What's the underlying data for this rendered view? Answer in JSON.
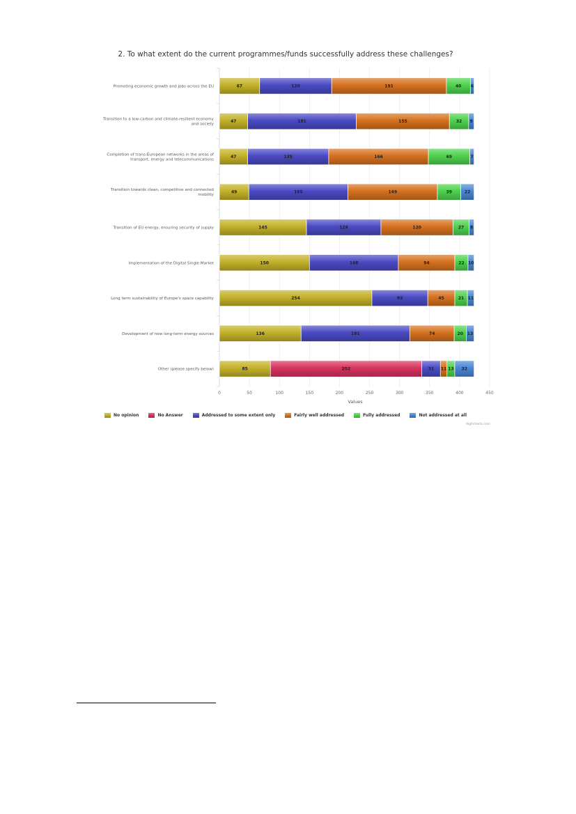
{
  "chart_data": {
    "type": "bar",
    "orientation": "horizontal",
    "stacked": true,
    "title": "2. To what extent do the current programmes/funds successfully address these challenges?",
    "xlabel": "Values",
    "xlim": [
      0,
      450
    ],
    "xticks": [
      "0",
      "50",
      "100",
      "150",
      "200",
      "250",
      "300",
      "350",
      "400",
      "450"
    ],
    "grid": true,
    "legend_position": "bottom",
    "categories": [
      "Promoting economic growth and jobs across the EU",
      "Transition to a low-carbon and climate-resilient economy and society",
      "Completion of trans-European networks in the areas of transport, energy and telecommunications",
      "Transition towards clean, competitive and connected mobility",
      "Transition of EU energy, ensuring security of supply",
      "Implementation of the Digital Single Market",
      "Long term sustainability of Europe's space capability",
      "Development of new long-term energy sources",
      "Other (please specify below)"
    ],
    "series": [
      {
        "name": "No opinion",
        "color": "#c3b128",
        "values": [
          67,
          47,
          47,
          49,
          145,
          150,
          254,
          136,
          85
        ]
      },
      {
        "name": "No Answer",
        "color": "#d8325e",
        "values": [
          0,
          0,
          0,
          0,
          0,
          0,
          0,
          0,
          252
        ]
      },
      {
        "name": "Addressed to some extent only",
        "color": "#4a4ac4",
        "values": [
          120,
          181,
          135,
          165,
          124,
          148,
          93,
          181,
          31
        ]
      },
      {
        "name": "Fairly well addressed",
        "color": "#d6711f",
        "values": [
          191,
          155,
          166,
          149,
          120,
          94,
          45,
          74,
          11
        ]
      },
      {
        "name": "Fully addressed",
        "color": "#4ed24e",
        "values": [
          40,
          32,
          69,
          39,
          27,
          22,
          21,
          20,
          13
        ]
      },
      {
        "name": "Not addressed at all",
        "color": "#4a86d2",
        "values": [
          6,
          9,
          7,
          22,
          8,
          10,
          11,
          13,
          32
        ]
      }
    ],
    "credits": "Highcharts.com"
  }
}
